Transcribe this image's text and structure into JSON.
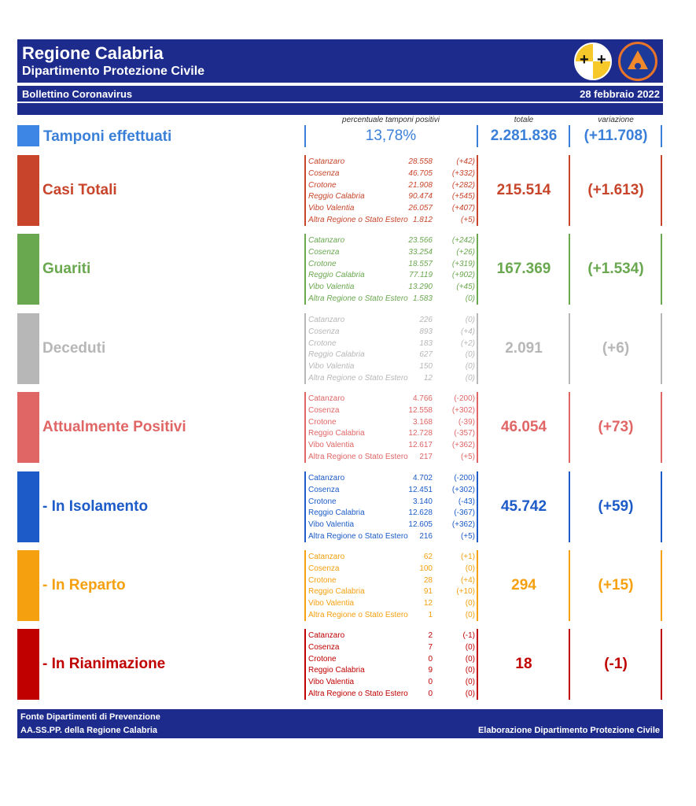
{
  "header": {
    "title": "Regione Calabria",
    "subtitle": "Dipartimento Protezione Civile",
    "bulletin": "Bollettino Coronavirus",
    "date": "28 febbraio 2022",
    "logo_left_icon": "regional-coat-of-arms-icon",
    "logo_right_icon": "protezione-civile-logo-icon"
  },
  "columns": {
    "percent_label": "percentuale tamponi positivi",
    "total_label": "totale",
    "variation_label": "variazione"
  },
  "tamponi": {
    "label": "Tamponi effettuati",
    "percent": "13,78%",
    "total": "2.281.836",
    "variation": "(+11.708)",
    "color": "#3a7fd8"
  },
  "rows": [
    {
      "label": "Casi Totali",
      "color": "#c8452b",
      "total": "215.514",
      "variation": "(+1.613)",
      "italic": true,
      "provinces": [
        {
          "name": "Catanzaro",
          "value": "28.558",
          "delta": "(+42)"
        },
        {
          "name": "Cosenza",
          "value": "46.705",
          "delta": "(+332)"
        },
        {
          "name": "Crotone",
          "value": "21.908",
          "delta": "(+282)"
        },
        {
          "name": "Reggio Calabria",
          "value": "90.474",
          "delta": "(+545)"
        },
        {
          "name": "Vibo Valentia",
          "value": "26.057",
          "delta": "(+407)"
        },
        {
          "name": "Altra Regione o Stato Estero",
          "value": "1.812",
          "delta": "(+5)"
        }
      ]
    },
    {
      "label": "Guariti",
      "color": "#6aa84f",
      "total": "167.369",
      "variation": "(+1.534)",
      "italic": true,
      "provinces": [
        {
          "name": "Catanzaro",
          "value": "23.566",
          "delta": "(+242)"
        },
        {
          "name": "Cosenza",
          "value": "33.254",
          "delta": "(+26)"
        },
        {
          "name": "Crotone",
          "value": "18.557",
          "delta": "(+319)"
        },
        {
          "name": "Reggio Calabria",
          "value": "77.119",
          "delta": "(+902)"
        },
        {
          "name": "Vibo Valentia",
          "value": "13.290",
          "delta": "(+45)"
        },
        {
          "name": "Altra Regione o Stato Estero",
          "value": "1.583",
          "delta": "(0)"
        }
      ]
    },
    {
      "label": "Deceduti",
      "color": "#b7b7b7",
      "total": "2.091",
      "variation": "(+6)",
      "italic": true,
      "provinces": [
        {
          "name": "Catanzaro",
          "value": "226",
          "delta": "(0)"
        },
        {
          "name": "Cosenza",
          "value": "893",
          "delta": "(+4)"
        },
        {
          "name": "Crotone",
          "value": "183",
          "delta": "(+2)"
        },
        {
          "name": "Reggio Calabria",
          "value": "627",
          "delta": "(0)"
        },
        {
          "name": "Vibo Valentia",
          "value": "150",
          "delta": "(0)"
        },
        {
          "name": "Altra Regione o Stato Estero",
          "value": "12",
          "delta": "(0)"
        }
      ]
    },
    {
      "label": "Attualmente Positivi",
      "color": "#e06666",
      "total": "46.054",
      "variation": "(+73)",
      "italic": false,
      "provinces": [
        {
          "name": "Catanzaro",
          "value": "4.766",
          "delta": "(-200)"
        },
        {
          "name": "Cosenza",
          "value": "12.558",
          "delta": "(+302)"
        },
        {
          "name": "Crotone",
          "value": "3.168",
          "delta": "(-39)"
        },
        {
          "name": "Reggio Calabria",
          "value": "12.728",
          "delta": "(-357)"
        },
        {
          "name": "Vibo Valentia",
          "value": "12.617",
          "delta": "(+362)"
        },
        {
          "name": "Altra Regione o Stato Estero",
          "value": "217",
          "delta": "(+5)"
        }
      ]
    },
    {
      "label": " - In Isolamento",
      "color": "#1c5bc8",
      "total": "45.742",
      "variation": "(+59)",
      "italic": false,
      "provinces": [
        {
          "name": "Catanzaro",
          "value": "4.702",
          "delta": "(-200)"
        },
        {
          "name": "Cosenza",
          "value": "12.451",
          "delta": "(+302)"
        },
        {
          "name": "Crotone",
          "value": "3.140",
          "delta": "(-43)"
        },
        {
          "name": "Reggio Calabria",
          "value": "12.628",
          "delta": "(-367)"
        },
        {
          "name": "Vibo Valentia",
          "value": "12.605",
          "delta": "(+362)"
        },
        {
          "name": "Altra Regione o Stato Estero",
          "value": "216",
          "delta": "(+5)"
        }
      ]
    },
    {
      "label": " - In Reparto",
      "color": "#f5a00f",
      "total": "294",
      "variation": "(+15)",
      "italic": false,
      "provinces": [
        {
          "name": "Catanzaro",
          "value": "62",
          "delta": "(+1)"
        },
        {
          "name": "Cosenza",
          "value": "100",
          "delta": "(0)"
        },
        {
          "name": "Crotone",
          "value": "28",
          "delta": "(+4)"
        },
        {
          "name": "Reggio Calabria",
          "value": "91",
          "delta": "(+10)"
        },
        {
          "name": "Vibo Valentia",
          "value": "12",
          "delta": "(0)"
        },
        {
          "name": "Altra Regione o Stato Estero",
          "value": "1",
          "delta": "(0)"
        }
      ]
    },
    {
      "label": " - In Rianimazione",
      "color": "#c00000",
      "total": "18",
      "variation": "(-1)",
      "italic": false,
      "provinces": [
        {
          "name": "Catanzaro",
          "value": "2",
          "delta": "(-1)"
        },
        {
          "name": "Cosenza",
          "value": "7",
          "delta": "(0)"
        },
        {
          "name": "Crotone",
          "value": "0",
          "delta": "(0)"
        },
        {
          "name": "Reggio Calabria",
          "value": "9",
          "delta": "(0)"
        },
        {
          "name": "Vibo Valentia",
          "value": "0",
          "delta": "(0)"
        },
        {
          "name": "Altra Regione o Stato Estero",
          "value": "0",
          "delta": "(0)"
        }
      ]
    }
  ],
  "footer": {
    "source_line1": "Fonte Dipartimenti di Prevenzione",
    "source_line2": "AA.SS.PP.  della Regione Calabria",
    "credit": "Elaborazione Dipartimento Protezione Civile"
  }
}
